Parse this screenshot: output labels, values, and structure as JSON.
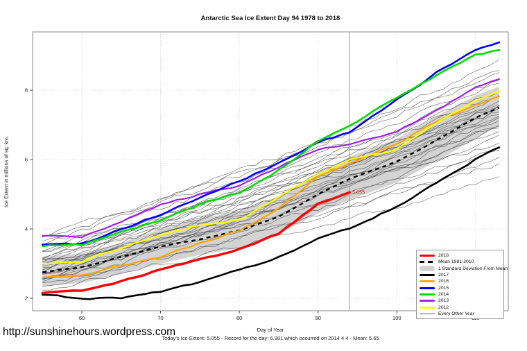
{
  "page": {
    "url": "http://sunshinehours.wordpress.com",
    "footer": "Today's Ice Extent: 5.055  - Record for the day: 6.981 which occurred on 2014 4 4  - Mean: 5.65"
  },
  "chart_data": {
    "type": "line",
    "title": "Antarctic Sea Ice Extent Day 94 1978 to 2018",
    "xlabel": "Day of Year",
    "ylabel": "Ice Extent in millions of sq. km.",
    "x_ticks": [
      60,
      70,
      80,
      90,
      100,
      110
    ],
    "y_ticks": [
      2,
      4,
      6,
      8
    ],
    "xlim": [
      53.75,
      114.15
    ],
    "ylim": [
      1.64,
      9.68
    ],
    "grid": "dotted",
    "marker_day": 94,
    "marker_label": "5.055",
    "days": [
      55,
      60,
      65,
      70,
      75,
      80,
      85,
      90,
      94,
      100,
      105,
      110,
      113
    ],
    "series": [
      {
        "name": "2017",
        "color": "#000000",
        "width": 2.6,
        "values": [
          2.1,
          2.0,
          2.0,
          2.2,
          2.45,
          2.8,
          3.2,
          3.7,
          4.0,
          4.66,
          5.3,
          6.0,
          6.35
        ]
      },
      {
        "name": "2016",
        "color": "#FFA500",
        "width": 2.2,
        "values": [
          2.6,
          2.66,
          2.95,
          3.2,
          3.6,
          3.95,
          4.6,
          5.5,
          5.9,
          6.45,
          7.1,
          7.6,
          7.82
        ]
      },
      {
        "name": "2012",
        "color": "#FFFF00",
        "width": 2.2,
        "values": [
          3.0,
          3.06,
          3.45,
          3.8,
          4.1,
          4.26,
          4.9,
          5.6,
          6.0,
          6.3,
          7.05,
          7.7,
          7.98
        ]
      },
      {
        "name": "2013",
        "color": "#A020F0",
        "width": 2.2,
        "values": [
          3.8,
          3.76,
          4.2,
          4.7,
          5.0,
          5.24,
          5.8,
          6.3,
          6.44,
          6.82,
          7.4,
          8.1,
          8.32
        ]
      },
      {
        "name": "2015",
        "color": "#0000FF",
        "width": 2.6,
        "values": [
          3.55,
          3.58,
          4.0,
          4.42,
          4.9,
          5.36,
          5.9,
          6.5,
          6.78,
          7.72,
          8.5,
          9.15,
          9.38
        ]
      },
      {
        "name": "2014",
        "color": "#00DD00",
        "width": 2.6,
        "values": [
          3.5,
          3.54,
          3.9,
          4.26,
          4.7,
          5.05,
          5.7,
          6.55,
          6.94,
          7.8,
          8.4,
          9.0,
          9.16
        ]
      },
      {
        "name": "2018",
        "color": "#FF0000",
        "width": 3.4,
        "values": [
          2.15,
          2.2,
          2.5,
          2.82,
          3.12,
          3.4,
          3.85,
          4.75,
          5.055,
          null,
          null,
          null,
          null
        ]
      }
    ],
    "mean": {
      "name": "Mean 1981-2010",
      "color": "#000000",
      "width": 2.4,
      "values": [
        2.75,
        2.9,
        3.2,
        3.5,
        3.7,
        3.95,
        4.35,
        5.0,
        5.44,
        5.94,
        6.55,
        7.2,
        7.5
      ]
    },
    "band": {
      "name": "1 Standard Deviation From Mean",
      "color": "#D3D3D3",
      "top": [
        3.2,
        3.3,
        3.6,
        4.0,
        4.3,
        4.5,
        4.95,
        5.6,
        6.08,
        6.6,
        7.25,
        7.85,
        8.1
      ],
      "bottom": [
        2.35,
        2.44,
        2.7,
        3.0,
        3.25,
        3.45,
        3.85,
        4.45,
        4.84,
        5.34,
        5.95,
        6.6,
        7.0
      ]
    },
    "other_years": {
      "name": "Every Other Year",
      "color": "#444444",
      "width": 0.6,
      "lines": [
        [
          2.25,
          5.5,
          11
        ],
        [
          2.4,
          5.9,
          12
        ],
        [
          2.5,
          6.2,
          13
        ],
        [
          2.6,
          6.5,
          14
        ],
        [
          2.65,
          6.8,
          15
        ],
        [
          2.7,
          7.0,
          16
        ],
        [
          2.75,
          7.1,
          17
        ],
        [
          2.8,
          7.2,
          18
        ],
        [
          2.85,
          7.3,
          19
        ],
        [
          2.9,
          7.4,
          20
        ],
        [
          2.95,
          7.45,
          21
        ],
        [
          3.0,
          7.5,
          22
        ],
        [
          3.05,
          7.55,
          23
        ],
        [
          3.1,
          7.6,
          24
        ],
        [
          3.15,
          7.65,
          25
        ],
        [
          2.45,
          7.0,
          26
        ],
        [
          2.55,
          6.9,
          27
        ],
        [
          3.2,
          7.7,
          28
        ],
        [
          3.3,
          7.8,
          29
        ],
        [
          3.35,
          7.9,
          30
        ],
        [
          3.4,
          8.0,
          31
        ],
        [
          3.5,
          8.3,
          32
        ],
        [
          3.6,
          8.6,
          33
        ],
        [
          3.7,
          8.8,
          34
        ],
        [
          3.8,
          8.5,
          35
        ],
        [
          2.35,
          6.0,
          36
        ],
        [
          2.6,
          7.3,
          37
        ],
        [
          2.9,
          6.6,
          38
        ],
        [
          3.1,
          8.2,
          39
        ],
        [
          2.7,
          6.3,
          40
        ]
      ]
    },
    "legend": {
      "entries": [
        {
          "label": "2018",
          "swatch": "thick",
          "color": "#FF0000"
        },
        {
          "label": "Mean 1981-2010",
          "swatch": "dashed",
          "color": "#000000"
        },
        {
          "label": "1 Standard Deviation From Mean",
          "swatch": "band",
          "color": "#D3D3D3"
        },
        {
          "label": "2017",
          "swatch": "thick",
          "color": "#000000"
        },
        {
          "label": "2016",
          "swatch": "thick",
          "color": "#FFA500"
        },
        {
          "label": "2015",
          "swatch": "thick",
          "color": "#0000FF"
        },
        {
          "label": "2014",
          "swatch": "thick",
          "color": "#00DD00"
        },
        {
          "label": "2013",
          "swatch": "thick",
          "color": "#A020F0"
        },
        {
          "label": "2012",
          "swatch": "thick",
          "color": "#FFFF00"
        },
        {
          "label": "Every Other Year",
          "swatch": "thin",
          "color": "#555555"
        }
      ]
    }
  }
}
